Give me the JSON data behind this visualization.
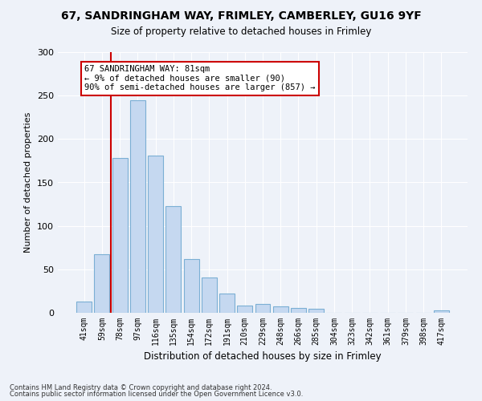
{
  "title_line1": "67, SANDRINGHAM WAY, FRIMLEY, CAMBERLEY, GU16 9YF",
  "title_line2": "Size of property relative to detached houses in Frimley",
  "xlabel": "Distribution of detached houses by size in Frimley",
  "ylabel": "Number of detached properties",
  "bar_color": "#c5d8f0",
  "bar_edge_color": "#7bafd4",
  "categories": [
    "41sqm",
    "59sqm",
    "78sqm",
    "97sqm",
    "116sqm",
    "135sqm",
    "154sqm",
    "172sqm",
    "191sqm",
    "210sqm",
    "229sqm",
    "248sqm",
    "266sqm",
    "285sqm",
    "304sqm",
    "323sqm",
    "342sqm",
    "361sqm",
    "379sqm",
    "398sqm",
    "417sqm"
  ],
  "values": [
    13,
    67,
    178,
    245,
    181,
    123,
    62,
    41,
    22,
    8,
    10,
    7,
    6,
    5,
    0,
    0,
    0,
    0,
    0,
    0,
    3
  ],
  "ylim": [
    0,
    300
  ],
  "yticks": [
    0,
    50,
    100,
    150,
    200,
    250,
    300
  ],
  "vline_x_idx": 2,
  "vline_color": "#cc0000",
  "annotation_text": "67 SANDRINGHAM WAY: 81sqm\n← 9% of detached houses are smaller (90)\n90% of semi-detached houses are larger (857) →",
  "annotation_box_color": "#ffffff",
  "annotation_box_edge": "#cc0000",
  "footer_line1": "Contains HM Land Registry data © Crown copyright and database right 2024.",
  "footer_line2": "Contains public sector information licensed under the Open Government Licence v3.0.",
  "bg_color": "#eef2f9",
  "grid_color": "#ffffff"
}
